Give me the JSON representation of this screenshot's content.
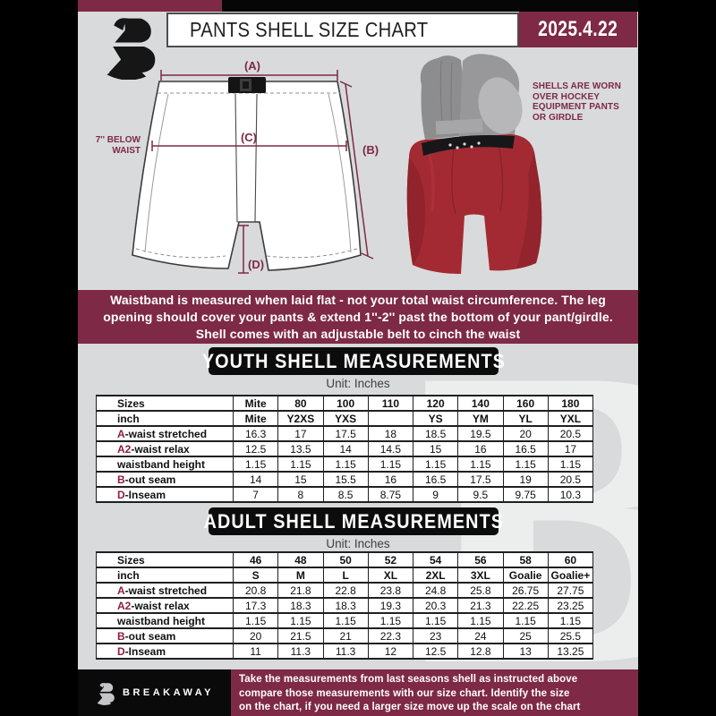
{
  "colors": {
    "maroon": "#7e2946",
    "accent": "#8e1f3e",
    "page_bg": "#d9dadb",
    "black": "#0c0c0c",
    "shell_red": "#a32a33"
  },
  "header": {
    "title": "PANTS SHELL SIZE CHART",
    "date": "2025.4.22"
  },
  "diagram": {
    "label_a": "(A)",
    "label_b": "(B)",
    "label_c": "(C)",
    "label_d": "(D)",
    "below_waist_line1": "7'' BELOW",
    "below_waist_line2": "WAIST",
    "caption": [
      "SHELLS ARE WORN",
      "OVER HOCKEY",
      "EQUIPMENT PANTS",
      "OR GIRDLE"
    ]
  },
  "notice": {
    "line1": "Waistband is measured when laid flat - not your total waist circumference. The leg",
    "line2": "opening should cover your pants & extend 1''-2'' past the bottom of your pant/girdle.",
    "line3": "Shell comes with an adjustable belt to cinch the waist"
  },
  "youth": {
    "title": "YOUTH SHELL MEASUREMENTS",
    "unit": "Unit: Inches",
    "rows": [
      {
        "accent": "",
        "label": "Sizes",
        "bold": true,
        "cells": [
          "Mite",
          "80",
          "100",
          "110",
          "120",
          "140",
          "160",
          "180"
        ]
      },
      {
        "accent": "",
        "label": "inch",
        "bold": true,
        "cells": [
          "Mite",
          "Y2XS",
          "YXS",
          "",
          "YS",
          "YM",
          "YL",
          "YXL"
        ]
      },
      {
        "accent": "A",
        "label": "-waist stretched",
        "bold": false,
        "cells": [
          "16.3",
          "17",
          "17.5",
          "18",
          "18.5",
          "19.5",
          "20",
          "20.5"
        ]
      },
      {
        "accent": "A2",
        "label": "-waist relax",
        "bold": false,
        "cells": [
          "12.5",
          "13.5",
          "14",
          "14.5",
          "15",
          "16",
          "16.5",
          "17"
        ]
      },
      {
        "accent": "",
        "label": "waistband height",
        "bold": false,
        "cells": [
          "1.15",
          "1.15",
          "1.15",
          "1.15",
          "1.15",
          "1.15",
          "1.15",
          "1.15"
        ]
      },
      {
        "accent": "B",
        "label": "-out seam",
        "bold": false,
        "cells": [
          "14",
          "15",
          "15.5",
          "16",
          "16.5",
          "17.5",
          "19",
          "20.5"
        ]
      },
      {
        "accent": "D",
        "label": "-Inseam",
        "bold": false,
        "cells": [
          "7",
          "8",
          "8.5",
          "8.75",
          "9",
          "9.5",
          "9.75",
          "10.3"
        ]
      }
    ]
  },
  "adult": {
    "title": "ADULT SHELL MEASUREMENTS",
    "unit": "Unit: Inches",
    "rows": [
      {
        "accent": "",
        "label": "Sizes",
        "bold": true,
        "cells": [
          "46",
          "48",
          "50",
          "52",
          "54",
          "56",
          "58",
          "60"
        ]
      },
      {
        "accent": "",
        "label": "inch",
        "bold": true,
        "cells": [
          "S",
          "M",
          "L",
          "XL",
          "2XL",
          "3XL",
          "Goalie",
          "Goalie+"
        ]
      },
      {
        "accent": "A",
        "label": "-waist stretched",
        "bold": false,
        "cells": [
          "20.8",
          "21.8",
          "22.8",
          "23.8",
          "24.8",
          "25.8",
          "26.75",
          "27.75"
        ]
      },
      {
        "accent": "A2",
        "label": "-waist relax",
        "bold": false,
        "cells": [
          "17.3",
          "18.3",
          "18.3",
          "19.3",
          "20.3",
          "21.3",
          "22.25",
          "23.25"
        ]
      },
      {
        "accent": "",
        "label": "waistband height",
        "bold": false,
        "cells": [
          "1.15",
          "1.15",
          "1.15",
          "1.15",
          "1.15",
          "1.15",
          "1.15",
          "1.15"
        ]
      },
      {
        "accent": "B",
        "label": "-out seam",
        "bold": false,
        "cells": [
          "20",
          "21.5",
          "21",
          "22.3",
          "23",
          "24",
          "25",
          "25.5"
        ]
      },
      {
        "accent": "D",
        "label": "-Inseam",
        "bold": false,
        "cells": [
          "11",
          "11.3",
          "11.3",
          "12",
          "12.5",
          "12.8",
          "13",
          "13.25"
        ]
      }
    ]
  },
  "footer": {
    "brand": "BREAKAWAY",
    "line1": "Take the measurements from last seasons shell as instructed above",
    "line2": "compare those measurements  with our size chart. Identify the size",
    "line3": "on the chart, if you need a larger size move up the scale on the chart"
  },
  "watermark_letter": "B"
}
